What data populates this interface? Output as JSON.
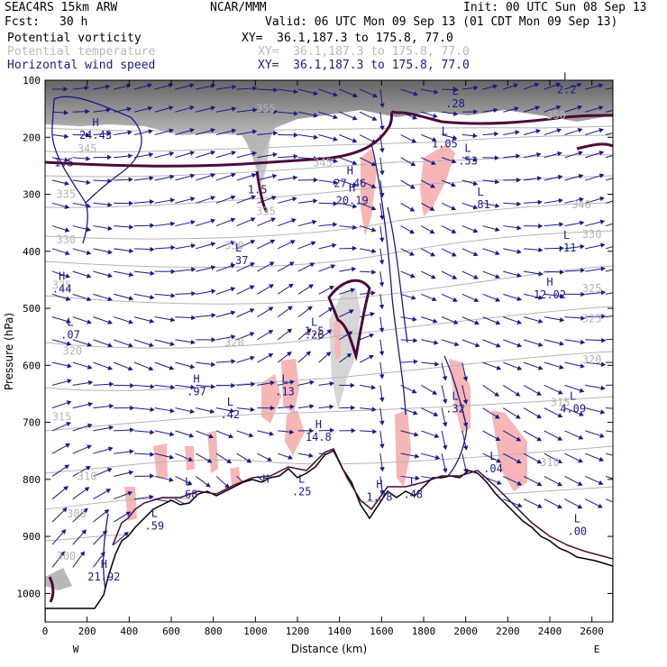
{
  "header": {
    "model": "SEAC4RS 15km ARW",
    "center": "NCAR/MMM",
    "init": "Init: 00 UTC Sun 08 Sep 13",
    "fcst_label": "Fcst:",
    "fcst_value": "30 h",
    "valid": "Valid: 06 UTC Mon 09 Sep 13 (01 CDT Mon 09 Sep 13)"
  },
  "legend": [
    {
      "name": "Potential vorticity",
      "xy": "XY=  36.1,187.3 to 175.8, 77.0",
      "color": "#000000"
    },
    {
      "name": "Potential temperature",
      "xy": "XY=  36.1,187.3 to 175.8, 77.0",
      "color": "#b8b8b8"
    },
    {
      "name": "Horizontal wind speed",
      "xy": "XY=  36.1,187.3 to 175.8, 77.0",
      "color": "#1a1a8c"
    }
  ],
  "chart_data": {
    "type": "cross-section",
    "xlabel": "Distance (km)",
    "ylabel": "Pressure (hPa)",
    "x_ticks": [
      0,
      200,
      400,
      600,
      800,
      1000,
      1200,
      1400,
      1600,
      1800,
      2000,
      2200,
      2400,
      2600
    ],
    "y_ticks": [
      100,
      200,
      300,
      400,
      500,
      600,
      700,
      800,
      900,
      1000
    ],
    "xlim": [
      0,
      2700
    ],
    "ylim": [
      100,
      1050
    ],
    "x_end_labels": {
      "left": "W",
      "right": "E"
    },
    "theta_labels": [
      {
        "x": 1050,
        "p": 150,
        "text": "355"
      },
      {
        "x": 2430,
        "p": 162,
        "text": "350"
      },
      {
        "x": 200,
        "p": 220,
        "text": "345"
      },
      {
        "x": 1320,
        "p": 245,
        "text": "345"
      },
      {
        "x": 100,
        "p": 300,
        "text": "335"
      },
      {
        "x": 2550,
        "p": 318,
        "text": "340"
      },
      {
        "x": 1050,
        "p": 330,
        "text": "335"
      },
      {
        "x": 2600,
        "p": 370,
        "text": "330"
      },
      {
        "x": 900,
        "p": 390,
        "text": "330"
      },
      {
        "x": 100,
        "p": 380,
        "text": "330"
      },
      {
        "x": 80,
        "p": 460,
        "text": "325"
      },
      {
        "x": 2600,
        "p": 465,
        "text": "325"
      },
      {
        "x": 2600,
        "p": 518,
        "text": "325"
      },
      {
        "x": 900,
        "p": 560,
        "text": "320"
      },
      {
        "x": 130,
        "p": 575,
        "text": "320"
      },
      {
        "x": 2600,
        "p": 590,
        "text": "320"
      },
      {
        "x": 2450,
        "p": 665,
        "text": "315"
      },
      {
        "x": 80,
        "p": 690,
        "text": "315"
      },
      {
        "x": 2400,
        "p": 770,
        "text": "310"
      },
      {
        "x": 200,
        "p": 795,
        "text": "310"
      },
      {
        "x": 150,
        "p": 860,
        "text": "305"
      },
      {
        "x": 100,
        "p": 935,
        "text": "300"
      }
    ],
    "extrema": [
      {
        "x": 240,
        "p": 190,
        "kind": "H",
        "value": "24.43",
        "color": "#1a1a8c"
      },
      {
        "x": 1450,
        "p": 275,
        "kind": "H",
        "value": "27.46",
        "color": "#1a1a8c"
      },
      {
        "x": 1460,
        "p": 305,
        "kind": "H",
        "value": "20.19",
        "color": "#1a1a8c"
      },
      {
        "x": 1900,
        "p": 205,
        "kind": "L",
        "value": "1.05",
        "color": "#1a1a8c"
      },
      {
        "x": 1950,
        "p": 135,
        "kind": "L",
        "value": ".28",
        "color": "#1a1a8c"
      },
      {
        "x": 2010,
        "p": 235,
        "kind": "L",
        "value": ".53",
        "color": "#1a1a8c"
      },
      {
        "x": 2070,
        "p": 312,
        "kind": "L",
        "value": ".81",
        "color": "#1a1a8c"
      },
      {
        "x": 2480,
        "p": 110,
        "kind": "L",
        "value": "2.2",
        "color": "#1a1a8c"
      },
      {
        "x": 2480,
        "p": 388,
        "kind": "L",
        "value": ".11",
        "color": "#1a1a8c"
      },
      {
        "x": 2400,
        "p": 470,
        "kind": "H",
        "value": "12.02",
        "color": "#1a1a8c"
      },
      {
        "x": 920,
        "p": 410,
        "kind": "L",
        "value": ".37",
        "color": "#1a1a8c"
      },
      {
        "x": 1280,
        "p": 540,
        "kind": "L",
        "value": ".26",
        "color": "#1a1a8c"
      },
      {
        "x": 80,
        "p": 460,
        "kind": "H",
        "value": ".44",
        "color": "#1a1a8c"
      },
      {
        "x": 120,
        "p": 540,
        "kind": "L",
        "value": ".07",
        "color": "#1a1a8c"
      },
      {
        "x": 720,
        "p": 640,
        "kind": "H",
        "value": ".97",
        "color": "#1a1a8c"
      },
      {
        "x": 880,
        "p": 680,
        "kind": "L",
        "value": ".42",
        "color": "#1a1a8c"
      },
      {
        "x": 1140,
        "p": 640,
        "kind": "L",
        "value": ".13",
        "color": "#1a1a8c"
      },
      {
        "x": 1300,
        "p": 720,
        "kind": "H",
        "value": "14.8",
        "color": "#1a1a8c"
      },
      {
        "x": 1950,
        "p": 670,
        "kind": "L",
        "value": ".32",
        "color": "#1a1a8c"
      },
      {
        "x": 2510,
        "p": 670,
        "kind": "L",
        "value": "4.09",
        "color": "#1a1a8c"
      },
      {
        "x": 2130,
        "p": 775,
        "kind": "L",
        "value": ".04",
        "color": "#1a1a8c"
      },
      {
        "x": 680,
        "p": 820,
        "kind": "L",
        "value": ".68",
        "color": "#1a1a8c"
      },
      {
        "x": 1590,
        "p": 825,
        "kind": "H",
        "value": "1.78",
        "color": "#1a1a8c"
      },
      {
        "x": 1750,
        "p": 820,
        "kind": "L",
        "value": ".48",
        "color": "#1a1a8c"
      },
      {
        "x": 1050,
        "p": 815,
        "kind": "H",
        "value": "",
        "color": "#1a1a8c"
      },
      {
        "x": 1220,
        "p": 815,
        "kind": "L",
        "value": ".25",
        "color": "#1a1a8c"
      },
      {
        "x": 520,
        "p": 875,
        "kind": "L",
        "value": ".59",
        "color": "#1a1a8c"
      },
      {
        "x": 280,
        "p": 965,
        "kind": "H",
        "value": "21.92",
        "color": "#1a1a8c"
      },
      {
        "x": 2530,
        "p": 885,
        "kind": "L",
        "value": ".00",
        "color": "#1a1a8c"
      }
    ],
    "pv_labels": [
      {
        "x": 90,
        "p": 245,
        "text": "1.5"
      },
      {
        "x": 1010,
        "p": 292,
        "text": "1.5"
      },
      {
        "x": 1280,
        "p": 540,
        "text": "1.5"
      }
    ]
  }
}
